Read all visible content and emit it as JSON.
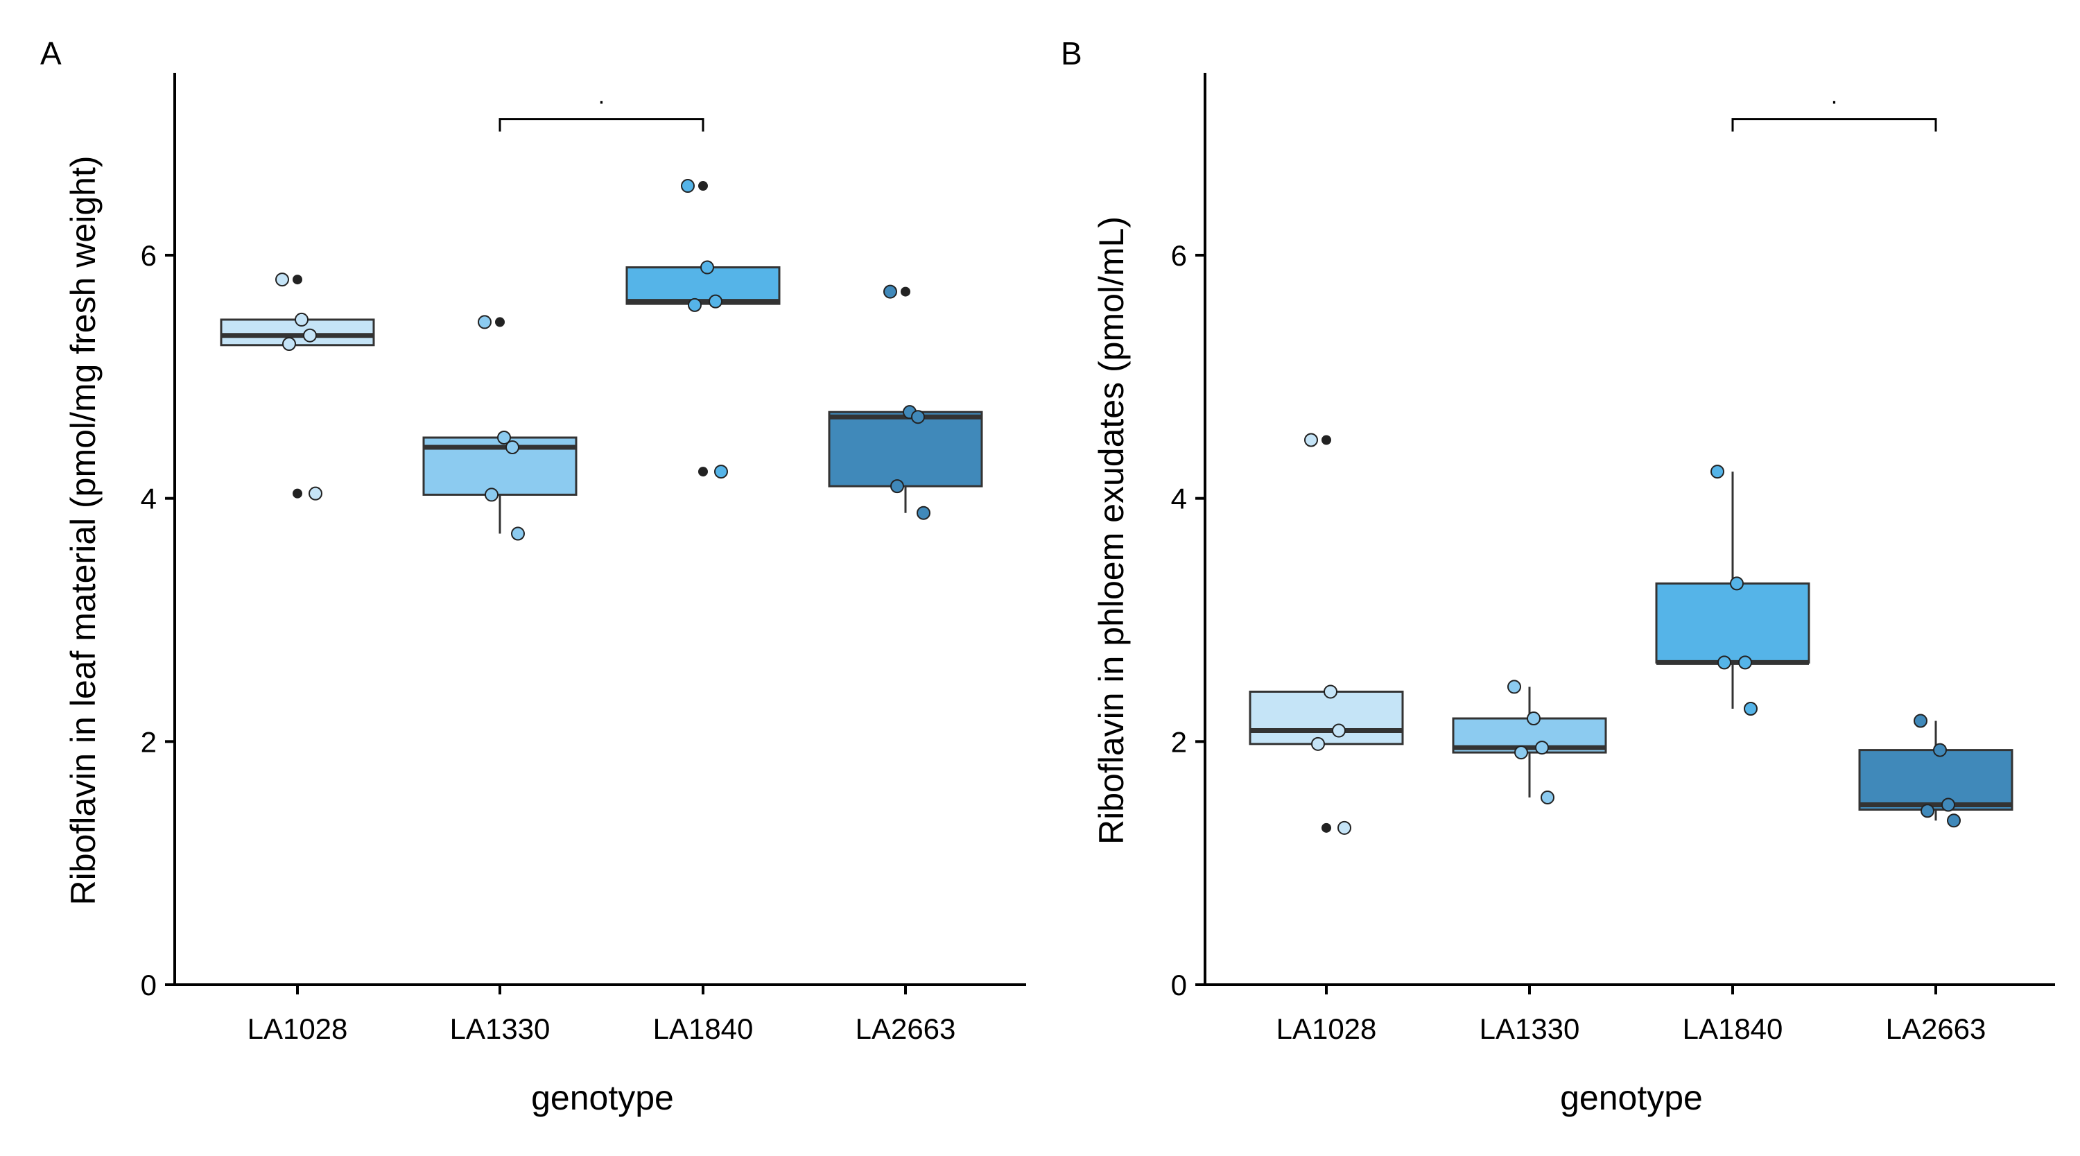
{
  "chart_data": [
    {
      "type": "box",
      "panel_label": "A",
      "xlabel": "genotype",
      "ylabel": "Riboflavin in leaf material (pmol/mg fresh weight)",
      "ylim": [
        0,
        7.5
      ],
      "yticks": [
        0,
        2,
        4,
        6
      ],
      "yticklabels": [
        "0",
        "2",
        "4",
        "6"
      ],
      "categories": [
        "LA1028",
        "LA1330",
        "LA1840",
        "LA2663"
      ],
      "colors": [
        "#c5e4f7",
        "#8ccbf0",
        "#55b4e8",
        "#4089ba"
      ],
      "boxes": [
        {
          "q1": 5.26,
          "median": 5.34,
          "q3": 5.47,
          "whisker_low": 5.26,
          "whisker_high": 5.47,
          "outliers": [
            4.04,
            5.8
          ],
          "points": [
            5.8,
            5.47,
            5.34,
            5.27,
            4.04
          ]
        },
        {
          "q1": 4.03,
          "median": 4.42,
          "q3": 4.5,
          "whisker_low": 3.71,
          "whisker_high": 4.5,
          "outliers": [
            5.45
          ],
          "points": [
            5.45,
            4.5,
            4.42,
            4.03,
            3.71
          ]
        },
        {
          "q1": 5.6,
          "median": 5.62,
          "q3": 5.9,
          "whisker_low": 5.6,
          "whisker_high": 5.9,
          "outliers": [
            6.57,
            4.22
          ],
          "points": [
            6.57,
            5.9,
            5.62,
            5.59,
            4.22
          ]
        },
        {
          "q1": 4.1,
          "median": 4.67,
          "q3": 4.71,
          "whisker_low": 3.88,
          "whisker_high": 4.71,
          "outliers": [
            5.7
          ],
          "points": [
            5.7,
            4.71,
            4.67,
            4.1,
            3.88
          ]
        }
      ],
      "significance": {
        "groups": [
          "LA1330",
          "LA1840"
        ],
        "label": ".",
        "y": 7.12
      }
    },
    {
      "type": "box",
      "panel_label": "B",
      "xlabel": "genotype",
      "ylabel": "Riboflavin in phloem exudates (pmol/mL)",
      "ylim": [
        0,
        7.5
      ],
      "yticks": [
        0,
        2,
        4,
        6
      ],
      "yticklabels": [
        "0",
        "2",
        "4",
        "6"
      ],
      "categories": [
        "LA1028",
        "LA1330",
        "LA1840",
        "LA2663"
      ],
      "colors": [
        "#c5e4f7",
        "#8ccbf0",
        "#55b4e8",
        "#4089ba"
      ],
      "boxes": [
        {
          "q1": 1.98,
          "median": 2.09,
          "q3": 2.41,
          "whisker_low": 1.98,
          "whisker_high": 2.41,
          "outliers": [
            4.48,
            1.29
          ],
          "points": [
            4.48,
            2.41,
            2.09,
            1.98,
            1.29
          ]
        },
        {
          "q1": 1.91,
          "median": 1.95,
          "q3": 2.19,
          "whisker_low": 1.54,
          "whisker_high": 2.45,
          "outliers": [],
          "points": [
            2.45,
            2.19,
            1.95,
            1.91,
            1.54
          ]
        },
        {
          "q1": 2.65,
          "median": 2.65,
          "q3": 3.3,
          "whisker_low": 2.27,
          "whisker_high": 4.22,
          "outliers": [],
          "points": [
            4.22,
            3.3,
            2.65,
            2.65,
            2.27
          ]
        },
        {
          "q1": 1.44,
          "median": 1.48,
          "q3": 1.93,
          "whisker_low": 1.35,
          "whisker_high": 2.17,
          "outliers": [],
          "points": [
            2.17,
            1.93,
            1.48,
            1.43,
            1.35
          ]
        }
      ],
      "significance": {
        "groups": [
          "LA1840",
          "LA2663"
        ],
        "label": ".",
        "y": 7.12
      }
    }
  ]
}
